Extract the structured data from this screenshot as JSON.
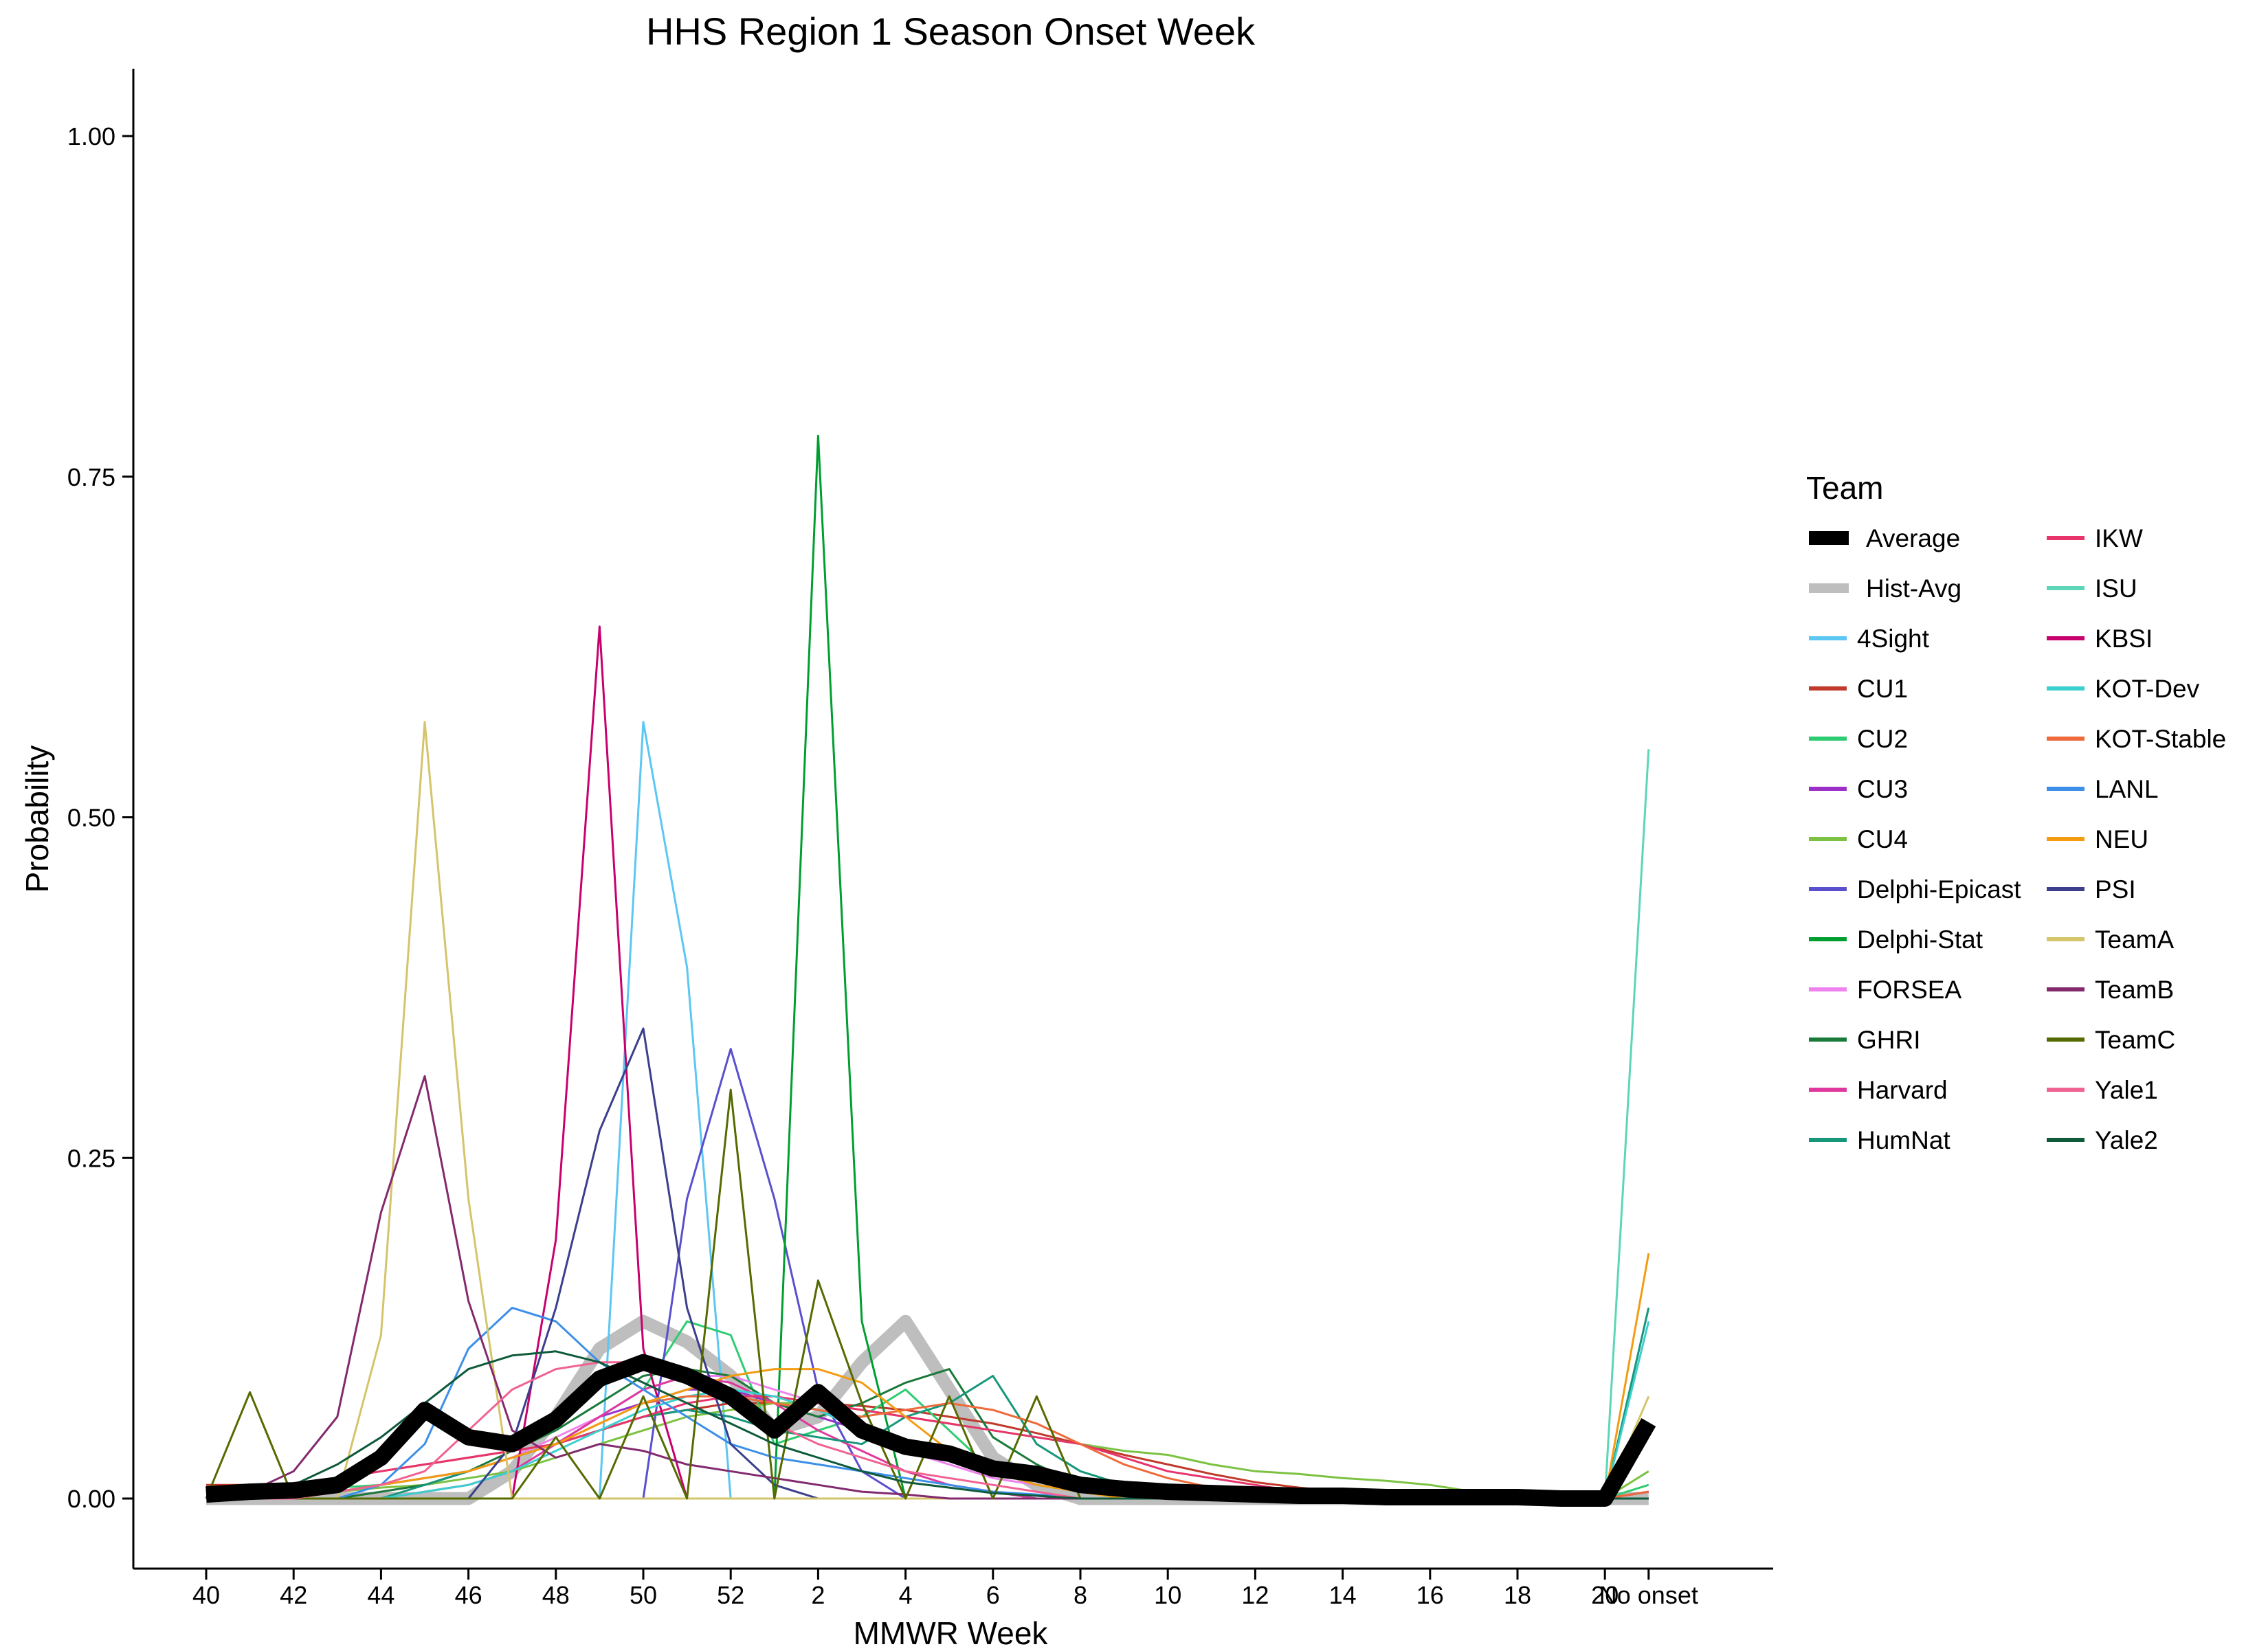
{
  "chart_data": {
    "type": "line",
    "title": "HHS Region 1 Season Onset Week",
    "xlabel": "MMWR Week",
    "ylabel": "Probability",
    "legend_title": "Team",
    "legend_placement": "right",
    "grid": false,
    "ylim": [
      -0.05,
      1.05
    ],
    "yticks": [
      0.0,
      0.25,
      0.5,
      0.75,
      1.0
    ],
    "ytick_labels": [
      "0.00",
      "0.25",
      "0.50",
      "0.75",
      "1.00"
    ],
    "x": [
      "40",
      "41",
      "42",
      "43",
      "44",
      "45",
      "46",
      "47",
      "48",
      "49",
      "50",
      "51",
      "52",
      "1",
      "2",
      "3",
      "4",
      "5",
      "6",
      "7",
      "8",
      "9",
      "10",
      "11",
      "12",
      "13",
      "14",
      "15",
      "16",
      "17",
      "18",
      "19",
      "20",
      "No onset"
    ],
    "xtick_labels": [
      "40",
      "42",
      "44",
      "46",
      "48",
      "50",
      "52",
      "2",
      "4",
      "6",
      "8",
      "10",
      "12",
      "14",
      "16",
      "18",
      "20",
      "No onset"
    ],
    "series": [
      {
        "name": "Average",
        "color": "#000000",
        "values": [
          0.003,
          0.005,
          0.006,
          0.01,
          0.03,
          0.065,
          0.045,
          0.04,
          0.058,
          0.088,
          0.1,
          0.09,
          0.075,
          0.05,
          0.078,
          0.05,
          0.038,
          0.033,
          0.022,
          0.018,
          0.01,
          0.007,
          0.005,
          0.004,
          0.003,
          0.002,
          0.002,
          0.001,
          0.001,
          0.001,
          0.001,
          0.0,
          0.0,
          0.056
        ]
      },
      {
        "name": "Hist-Avg",
        "color": "#BEBEBE",
        "values": [
          0.0,
          0.0,
          0.0,
          0.0,
          0.0,
          0.0,
          0.0,
          0.02,
          0.06,
          0.11,
          0.13,
          0.115,
          0.09,
          0.05,
          0.06,
          0.1,
          0.13,
          0.08,
          0.03,
          0.01,
          0.0,
          0.0,
          0.0,
          0.0,
          0.0,
          0.0,
          0.0,
          0.0,
          0.0,
          0.0,
          0.0,
          0.0,
          0.0,
          0.0
        ]
      },
      {
        "name": "4Sight",
        "color": "#5BC7F2",
        "values": [
          0.0,
          0.0,
          0.0,
          0.0,
          0.0,
          0.0,
          0.0,
          0.0,
          0.0,
          0.0,
          0.57,
          0.39,
          0.0,
          0.0,
          0.0,
          0.0,
          0.0,
          0.0,
          0.0,
          0.0,
          0.0,
          0.0,
          0.0,
          0.0,
          0.0,
          0.0,
          0.0,
          0.0,
          0.0,
          0.0,
          0.0,
          0.0,
          0.0,
          0.0
        ]
      },
      {
        "name": "CU1",
        "color": "#C0392B",
        "values": [
          0.01,
          0.01,
          0.01,
          0.015,
          0.02,
          0.025,
          0.03,
          0.035,
          0.04,
          0.05,
          0.06,
          0.065,
          0.07,
          0.07,
          0.07,
          0.068,
          0.065,
          0.06,
          0.055,
          0.048,
          0.04,
          0.032,
          0.025,
          0.018,
          0.012,
          0.008,
          0.005,
          0.003,
          0.001,
          0.0,
          0.0,
          0.0,
          0.0,
          0.005
        ]
      },
      {
        "name": "CU2",
        "color": "#2ECC71",
        "values": [
          0.0,
          0.0,
          0.005,
          0.008,
          0.01,
          0.015,
          0.02,
          0.03,
          0.04,
          0.06,
          0.08,
          0.13,
          0.12,
          0.04,
          0.05,
          0.06,
          0.08,
          0.05,
          0.02,
          0.01,
          0.005,
          0.002,
          0.0,
          0.0,
          0.0,
          0.0,
          0.0,
          0.0,
          0.0,
          0.0,
          0.0,
          0.0,
          0.0,
          0.01
        ]
      },
      {
        "name": "CU3",
        "color": "#9B30C8",
        "values": [
          0.0,
          0.0,
          0.0,
          0.005,
          0.01,
          0.015,
          0.02,
          0.03,
          0.04,
          0.06,
          0.07,
          0.08,
          0.08,
          0.07,
          0.06,
          0.05,
          0.04,
          0.03,
          0.02,
          0.015,
          0.01,
          0.005,
          0.003,
          0.002,
          0.0,
          0.0,
          0.0,
          0.0,
          0.0,
          0.0,
          0.0,
          0.0,
          0.0,
          0.005
        ]
      },
      {
        "name": "CU4",
        "color": "#7CC242",
        "values": [
          0.0,
          0.0,
          0.0,
          0.005,
          0.008,
          0.01,
          0.015,
          0.02,
          0.03,
          0.04,
          0.05,
          0.06,
          0.065,
          0.07,
          0.07,
          0.065,
          0.06,
          0.055,
          0.05,
          0.045,
          0.04,
          0.035,
          0.032,
          0.025,
          0.02,
          0.018,
          0.015,
          0.013,
          0.01,
          0.005,
          0.002,
          0.0,
          0.0,
          0.02
        ]
      },
      {
        "name": "Delphi-Epicast",
        "color": "#5A4FCF",
        "values": [
          0.0,
          0.0,
          0.0,
          0.0,
          0.0,
          0.0,
          0.0,
          0.0,
          0.0,
          0.0,
          0.0,
          0.22,
          0.33,
          0.22,
          0.08,
          0.02,
          0.0,
          0.0,
          0.0,
          0.0,
          0.0,
          0.0,
          0.0,
          0.0,
          0.0,
          0.0,
          0.0,
          0.0,
          0.0,
          0.0,
          0.0,
          0.0,
          0.0,
          0.0
        ]
      },
      {
        "name": "Delphi-Stat",
        "color": "#009E30",
        "values": [
          0.0,
          0.0,
          0.0,
          0.0,
          0.0,
          0.0,
          0.0,
          0.0,
          0.0,
          0.0,
          0.0,
          0.0,
          0.0,
          0.0,
          0.78,
          0.13,
          0.0,
          0.0,
          0.0,
          0.0,
          0.0,
          0.0,
          0.0,
          0.0,
          0.0,
          0.0,
          0.0,
          0.0,
          0.0,
          0.0,
          0.0,
          0.0,
          0.0,
          0.0
        ]
      },
      {
        "name": "FORSEA",
        "color": "#EE82EE",
        "values": [
          0.0,
          0.0,
          0.0,
          0.0,
          0.005,
          0.01,
          0.02,
          0.03,
          0.045,
          0.06,
          0.08,
          0.09,
          0.09,
          0.08,
          0.07,
          0.05,
          0.035,
          0.025,
          0.015,
          0.01,
          0.005,
          0.002,
          0.0,
          0.0,
          0.0,
          0.0,
          0.0,
          0.0,
          0.0,
          0.0,
          0.0,
          0.0,
          0.0,
          0.0
        ]
      },
      {
        "name": "GHRI",
        "color": "#1A7A3A",
        "values": [
          0.0,
          0.0,
          0.0,
          0.0,
          0.005,
          0.01,
          0.02,
          0.035,
          0.05,
          0.07,
          0.09,
          0.095,
          0.09,
          0.07,
          0.06,
          0.07,
          0.085,
          0.095,
          0.045,
          0.025,
          0.01,
          0.005,
          0.0,
          0.0,
          0.0,
          0.0,
          0.0,
          0.0,
          0.0,
          0.0,
          0.0,
          0.0,
          0.0,
          0.0
        ]
      },
      {
        "name": "Harvard",
        "color": "#E0399E",
        "values": [
          0.0,
          0.0,
          0.0,
          0.0,
          0.0,
          0.005,
          0.01,
          0.02,
          0.04,
          0.06,
          0.08,
          0.09,
          0.085,
          0.07,
          0.05,
          0.035,
          0.02,
          0.01,
          0.005,
          0.0,
          0.0,
          0.0,
          0.0,
          0.0,
          0.0,
          0.0,
          0.0,
          0.0,
          0.0,
          0.0,
          0.0,
          0.0,
          0.0,
          0.0
        ]
      },
      {
        "name": "HumNat",
        "color": "#16977A",
        "values": [
          0.0,
          0.0,
          0.0,
          0.0,
          0.0,
          0.01,
          0.02,
          0.03,
          0.04,
          0.05,
          0.06,
          0.065,
          0.06,
          0.05,
          0.045,
          0.04,
          0.06,
          0.07,
          0.09,
          0.04,
          0.02,
          0.01,
          0.005,
          0.0,
          0.0,
          0.0,
          0.0,
          0.0,
          0.0,
          0.0,
          0.0,
          0.0,
          0.0,
          0.14
        ]
      },
      {
        "name": "IKW",
        "color": "#E8336B",
        "values": [
          0.005,
          0.005,
          0.01,
          0.015,
          0.02,
          0.025,
          0.03,
          0.035,
          0.04,
          0.05,
          0.06,
          0.07,
          0.075,
          0.075,
          0.07,
          0.065,
          0.06,
          0.055,
          0.05,
          0.045,
          0.04,
          0.03,
          0.02,
          0.015,
          0.01,
          0.005,
          0.003,
          0.0,
          0.0,
          0.0,
          0.0,
          0.0,
          0.0,
          0.0
        ]
      },
      {
        "name": "ISU",
        "color": "#5CD6B6",
        "values": [
          0.0,
          0.0,
          0.0,
          0.0,
          0.0,
          0.0,
          0.0,
          0.0,
          0.0,
          0.0,
          0.0,
          0.0,
          0.0,
          0.0,
          0.0,
          0.0,
          0.0,
          0.0,
          0.0,
          0.0,
          0.0,
          0.0,
          0.0,
          0.0,
          0.0,
          0.0,
          0.0,
          0.0,
          0.0,
          0.0,
          0.0,
          0.0,
          0.0,
          0.55
        ]
      },
      {
        "name": "KBSI",
        "color": "#C8006E",
        "values": [
          0.0,
          0.0,
          0.0,
          0.0,
          0.0,
          0.0,
          0.0,
          0.0,
          0.19,
          0.64,
          0.11,
          0.0,
          0.0,
          0.0,
          0.0,
          0.0,
          0.0,
          0.0,
          0.0,
          0.0,
          0.0,
          0.0,
          0.0,
          0.0,
          0.0,
          0.0,
          0.0,
          0.0,
          0.0,
          0.0,
          0.0,
          0.0,
          0.0,
          0.0
        ]
      },
      {
        "name": "KOT-Dev",
        "color": "#3CCFD0",
        "values": [
          0.0,
          0.0,
          0.0,
          0.0,
          0.0,
          0.005,
          0.01,
          0.02,
          0.035,
          0.05,
          0.065,
          0.075,
          0.08,
          0.075,
          0.065,
          0.05,
          0.04,
          0.03,
          0.02,
          0.01,
          0.005,
          0.002,
          0.0,
          0.0,
          0.0,
          0.0,
          0.0,
          0.0,
          0.0,
          0.0,
          0.0,
          0.0,
          0.0,
          0.13
        ]
      },
      {
        "name": "KOT-Stable",
        "color": "#EE6A3A",
        "values": [
          0.0,
          0.0,
          0.0,
          0.005,
          0.01,
          0.015,
          0.02,
          0.03,
          0.04,
          0.055,
          0.07,
          0.075,
          0.075,
          0.07,
          0.065,
          0.06,
          0.065,
          0.07,
          0.065,
          0.055,
          0.04,
          0.025,
          0.015,
          0.008,
          0.004,
          0.002,
          0.0,
          0.0,
          0.0,
          0.0,
          0.0,
          0.0,
          0.0,
          0.005
        ]
      },
      {
        "name": "LANL",
        "color": "#3C8FE8",
        "values": [
          0.0,
          0.0,
          0.0,
          0.0,
          0.01,
          0.04,
          0.11,
          0.14,
          0.13,
          0.1,
          0.08,
          0.06,
          0.04,
          0.03,
          0.025,
          0.02,
          0.015,
          0.01,
          0.005,
          0.003,
          0.0,
          0.0,
          0.0,
          0.0,
          0.0,
          0.0,
          0.0,
          0.0,
          0.0,
          0.0,
          0.0,
          0.0,
          0.0,
          0.0
        ]
      },
      {
        "name": "NEU",
        "color": "#F39C12",
        "values": [
          0.0,
          0.0,
          0.0,
          0.005,
          0.01,
          0.015,
          0.02,
          0.03,
          0.04,
          0.055,
          0.07,
          0.08,
          0.09,
          0.095,
          0.095,
          0.085,
          0.06,
          0.035,
          0.02,
          0.01,
          0.005,
          0.0,
          0.0,
          0.0,
          0.0,
          0.0,
          0.0,
          0.0,
          0.0,
          0.0,
          0.0,
          0.0,
          0.0,
          0.18
        ]
      },
      {
        "name": "PSI",
        "color": "#3B3F8C",
        "values": [
          0.0,
          0.0,
          0.0,
          0.0,
          0.0,
          0.0,
          0.0,
          0.04,
          0.14,
          0.27,
          0.345,
          0.14,
          0.04,
          0.01,
          0.0,
          0.0,
          0.0,
          0.0,
          0.0,
          0.0,
          0.0,
          0.0,
          0.0,
          0.0,
          0.0,
          0.0,
          0.0,
          0.0,
          0.0,
          0.0,
          0.0,
          0.0,
          0.0,
          0.0
        ]
      },
      {
        "name": "TeamA",
        "color": "#D4C46A",
        "values": [
          0.0,
          0.0,
          0.0,
          0.0,
          0.12,
          0.57,
          0.22,
          0.0,
          0.0,
          0.0,
          0.0,
          0.0,
          0.0,
          0.0,
          0.0,
          0.0,
          0.0,
          0.0,
          0.0,
          0.0,
          0.0,
          0.0,
          0.0,
          0.0,
          0.0,
          0.0,
          0.0,
          0.0,
          0.0,
          0.0,
          0.0,
          0.0,
          0.0,
          0.075
        ]
      },
      {
        "name": "TeamB",
        "color": "#832A6E",
        "values": [
          0.0,
          0.005,
          0.02,
          0.06,
          0.21,
          0.31,
          0.145,
          0.05,
          0.03,
          0.04,
          0.035,
          0.025,
          0.02,
          0.015,
          0.01,
          0.005,
          0.003,
          0.0,
          0.0,
          0.0,
          0.0,
          0.0,
          0.0,
          0.0,
          0.0,
          0.0,
          0.0,
          0.0,
          0.0,
          0.0,
          0.0,
          0.0,
          0.0,
          0.0
        ]
      },
      {
        "name": "TeamC",
        "color": "#556B00",
        "values": [
          0.0,
          0.078,
          0.0,
          0.0,
          0.0,
          0.0,
          0.0,
          0.0,
          0.045,
          0.0,
          0.075,
          0.0,
          0.3,
          0.0,
          0.16,
          0.07,
          0.0,
          0.075,
          0.0,
          0.075,
          0.0,
          0.0,
          0.0,
          0.0,
          0.0,
          0.0,
          0.0,
          0.0,
          0.0,
          0.0,
          0.0,
          0.0,
          0.0,
          0.0
        ]
      },
      {
        "name": "Yale1",
        "color": "#F06292",
        "values": [
          0.0,
          0.0,
          0.0,
          0.005,
          0.01,
          0.02,
          0.05,
          0.08,
          0.095,
          0.1,
          0.1,
          0.09,
          0.075,
          0.055,
          0.04,
          0.03,
          0.02,
          0.015,
          0.01,
          0.005,
          0.0,
          0.0,
          0.0,
          0.0,
          0.0,
          0.0,
          0.0,
          0.0,
          0.0,
          0.0,
          0.0,
          0.0,
          0.0,
          0.0
        ]
      },
      {
        "name": "Yale2",
        "color": "#0E5A3A",
        "values": [
          0.0,
          0.005,
          0.01,
          0.025,
          0.045,
          0.07,
          0.095,
          0.105,
          0.108,
          0.1,
          0.085,
          0.07,
          0.055,
          0.04,
          0.03,
          0.02,
          0.012,
          0.008,
          0.004,
          0.002,
          0.0,
          0.0,
          0.0,
          0.0,
          0.0,
          0.0,
          0.0,
          0.0,
          0.0,
          0.0,
          0.0,
          0.0,
          0.0,
          0.0
        ]
      }
    ]
  }
}
